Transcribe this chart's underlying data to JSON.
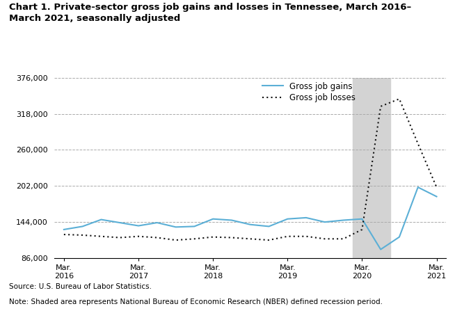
{
  "title": "Chart 1. Private-sector gross job gains and losses in Tennessee, March 2016–\nMarch 2021, seasonally adjusted",
  "source_text": "Source: U.S. Bureau of Labor Statistics.",
  "note_text": "Note: Shaded area represents National Bureau of Economic Research (NBER) defined recession period.",
  "legend_gains": "Gross job gains",
  "legend_losses": "Gross job losses",
  "gains_color": "#5BAFD6",
  "losses_color": "#111111",
  "background_color": "#ffffff",
  "shade_color": "#d3d3d3",
  "ylim": [
    86000,
    376000
  ],
  "yticks": [
    86000,
    144000,
    202000,
    260000,
    318000,
    376000
  ],
  "ytick_labels": [
    "86,000",
    "144,000",
    "202,000",
    "260,000",
    "318,000",
    "376,000"
  ],
  "recession_start_idx": 16,
  "recession_end_idx": 17,
  "x_tick_indices": [
    0,
    4,
    8,
    12,
    16,
    20
  ],
  "x_tick_labels": [
    "Mar.\n2016",
    "Mar.\n2017",
    "Mar.\n2018",
    "Mar.\n2019",
    "Mar.\n2020",
    "Mar.\n2021"
  ],
  "gross_job_gains": [
    132000,
    137000,
    148000,
    143000,
    138000,
    143000,
    136000,
    137000,
    149000,
    147000,
    140000,
    137000,
    149000,
    151000,
    144000,
    147000,
    149000,
    100000,
    120000,
    200000,
    185000
  ],
  "gross_job_losses": [
    124000,
    123000,
    121000,
    119000,
    121000,
    119000,
    115000,
    117000,
    120000,
    119000,
    117000,
    115000,
    121000,
    121000,
    117000,
    117000,
    132000,
    330000,
    342000,
    270000,
    200000
  ]
}
